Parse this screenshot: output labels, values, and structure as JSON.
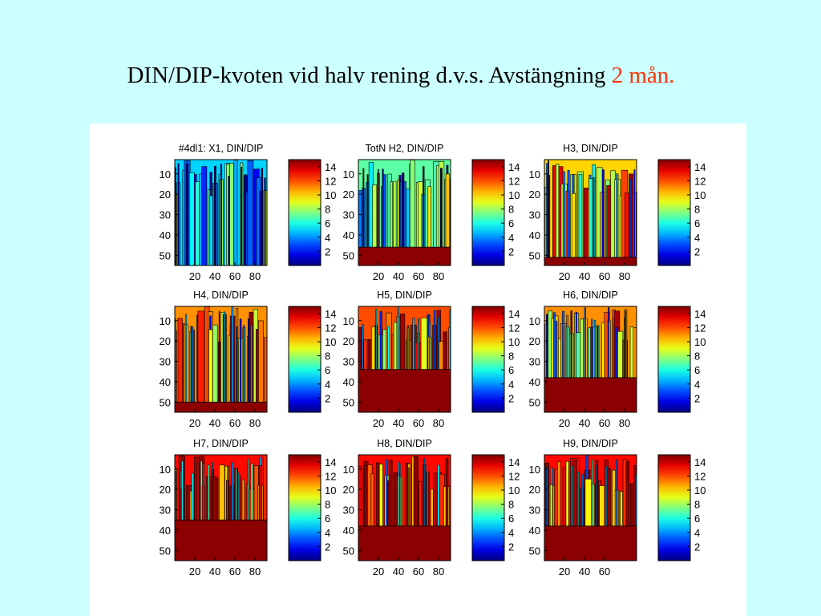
{
  "slide": {
    "title_main": "DIN/DIP-kvoten vid halv rening d.v.s. Avstängning",
    "title_accent": "2 mån.",
    "accent_color": "#ff3300",
    "background_color": "#ccffff"
  },
  "chart_data": [
    {
      "type": "heatmap",
      "title": "#4dl1: X1, DIN/DIP",
      "x_ticks": [
        20,
        40,
        60,
        80
      ],
      "y_ticks": [
        10,
        20,
        30,
        40,
        50
      ],
      "y_reversed": true,
      "colorbar_ticks": [
        2,
        4,
        6,
        8,
        10,
        12,
        14
      ],
      "colorbar_range": [
        0,
        15
      ],
      "colormap": "jet",
      "bottom_depth": 55,
      "dominant_level": 5
    },
    {
      "type": "heatmap",
      "title": "TotN H2, DIN/DIP",
      "x_ticks": [
        20,
        40,
        60,
        80
      ],
      "y_ticks": [
        10,
        20,
        30,
        40,
        50
      ],
      "y_reversed": true,
      "colorbar_ticks": [
        2,
        4,
        6,
        8,
        10,
        12,
        14
      ],
      "colorbar_range": [
        0,
        15
      ],
      "colormap": "jet",
      "bottom_depth": 46,
      "dominant_level": 7
    },
    {
      "type": "heatmap",
      "title": "H3, DIN/DIP",
      "x_ticks": [
        20,
        40,
        60,
        80
      ],
      "y_ticks": [
        10,
        20,
        30,
        40,
        50
      ],
      "y_reversed": true,
      "colorbar_ticks": [
        2,
        4,
        6,
        8,
        10,
        12,
        14
      ],
      "colorbar_range": [
        0,
        15
      ],
      "colormap": "jet",
      "bottom_depth": 51,
      "dominant_level": 10
    },
    {
      "type": "heatmap",
      "title": "H4, DIN/DIP",
      "x_ticks": [
        20,
        40,
        60,
        80
      ],
      "y_ticks": [
        10,
        20,
        30,
        40,
        50
      ],
      "y_reversed": true,
      "colorbar_ticks": [
        2,
        4,
        6,
        8,
        10,
        12,
        14
      ],
      "colorbar_range": [
        0,
        15
      ],
      "colormap": "jet",
      "bottom_depth": 50,
      "dominant_level": 11
    },
    {
      "type": "heatmap",
      "title": "H5, DIN/DIP",
      "x_ticks": [
        20,
        40,
        60,
        80
      ],
      "y_ticks": [
        10,
        20,
        30,
        40,
        50
      ],
      "y_reversed": true,
      "colorbar_ticks": [
        2,
        4,
        6,
        8,
        10,
        12,
        14
      ],
      "colorbar_range": [
        0,
        15
      ],
      "colormap": "jet",
      "bottom_depth": 34,
      "dominant_level": 12
    },
    {
      "type": "heatmap",
      "title": "H6, DIN/DIP",
      "x_ticks": [
        20,
        40,
        60,
        80
      ],
      "y_ticks": [
        10,
        20,
        30,
        40,
        50
      ],
      "y_reversed": true,
      "colorbar_ticks": [
        2,
        4,
        6,
        8,
        10,
        12,
        14
      ],
      "colorbar_range": [
        0,
        15
      ],
      "colormap": "jet",
      "bottom_depth": 38,
      "dominant_level": 11
    },
    {
      "type": "heatmap",
      "title": "H7, DIN/DIP",
      "x_ticks": [
        20,
        40,
        60,
        80
      ],
      "y_ticks": [
        10,
        20,
        30,
        40,
        50
      ],
      "y_reversed": true,
      "colorbar_ticks": [
        2,
        4,
        6,
        8,
        10,
        12,
        14
      ],
      "colorbar_range": [
        0,
        15
      ],
      "colormap": "jet",
      "bottom_depth": 35,
      "dominant_level": 13
    },
    {
      "type": "heatmap",
      "title": "H8, DIN/DIP",
      "x_ticks": [
        20,
        40,
        60,
        80
      ],
      "y_ticks": [
        10,
        20,
        30,
        40,
        50
      ],
      "y_reversed": true,
      "colorbar_ticks": [
        2,
        4,
        6,
        8,
        10,
        12,
        14
      ],
      "colorbar_range": [
        0,
        15
      ],
      "colormap": "jet",
      "bottom_depth": 38,
      "dominant_level": 13
    },
    {
      "type": "heatmap",
      "title": "H9, DIN/DIP",
      "x_ticks": [
        20,
        40,
        60
      ],
      "y_ticks": [
        10,
        20,
        30,
        40,
        50
      ],
      "y_reversed": true,
      "colorbar_ticks": [
        2,
        4,
        6,
        8,
        10,
        12,
        14
      ],
      "colorbar_range": [
        0,
        15
      ],
      "colormap": "jet",
      "bottom_depth": 38,
      "dominant_level": 13
    }
  ]
}
